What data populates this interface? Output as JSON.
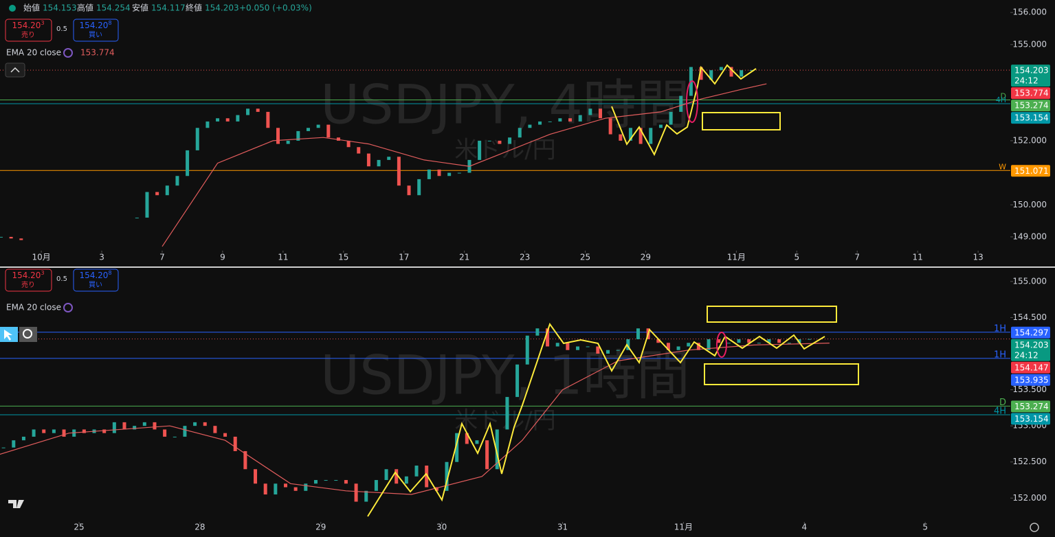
{
  "chart_data": [
    {
      "type": "candlestick",
      "title": "USDJPY, 4時間",
      "subtitle": "米ドル/円",
      "ohlc": {
        "open_label": "始値",
        "open": 154.153,
        "high_label": "高値",
        "high": 154.254,
        "low_label": "安値",
        "low": 154.117,
        "close_label": "終値",
        "close": 154.203,
        "change": "+0.050 (+0.03%)"
      },
      "trade": {
        "sell_price": "154.20",
        "sell_pip": "3",
        "sell_label": "売り",
        "spread": "0.5",
        "buy_price": "154.20",
        "buy_pip": "8",
        "buy_label": "買い"
      },
      "up_color": "#26a69a",
      "down_color": "#ef5350",
      "x": [
        -8,
        -6,
        -4,
        19,
        21,
        23,
        25,
        27,
        29,
        31,
        33,
        35,
        37,
        39,
        41,
        43,
        45,
        47,
        49,
        51,
        53,
        55,
        57,
        59,
        61,
        63,
        65,
        67,
        69,
        71,
        73,
        75,
        77,
        79,
        81,
        83,
        85,
        87,
        89,
        91,
        93,
        95,
        97,
        99,
        101,
        103,
        105,
        107,
        109,
        111,
        113,
        115,
        117,
        119,
        121,
        123,
        125,
        127,
        129,
        131,
        133,
        135,
        137,
        139,
        141
      ],
      "close": [
        149.0,
        148.95,
        148.9,
        149.6,
        150.4,
        150.3,
        150.6,
        150.9,
        151.7,
        152.4,
        152.6,
        152.7,
        152.6,
        152.8,
        153.0,
        152.9,
        152.4,
        151.9,
        152.0,
        152.3,
        152.4,
        152.5,
        152.1,
        152.0,
        151.8,
        151.6,
        151.2,
        151.4,
        151.5,
        150.6,
        150.3,
        150.8,
        151.1,
        150.9,
        151.0,
        151.0,
        151.4,
        152.0,
        152.0,
        151.9,
        152.1,
        152.4,
        152.5,
        152.6,
        152.6,
        152.7,
        152.6,
        152.8,
        153.0,
        152.7,
        152.2,
        152.0,
        152.4,
        151.9,
        152.4,
        152.5,
        152.9,
        153.4,
        154.3,
        153.9,
        154.2,
        154.3,
        154.0,
        154.2,
        154.203
      ],
      "ema": {
        "name": "EMA 20 close",
        "color": "#e35d5d",
        "last": 153.774,
        "legend_shows_value": true,
        "x": [
          24,
          35,
          46,
          56,
          65,
          76,
          85,
          93,
          101,
          112,
          123,
          131,
          139,
          144
        ],
        "values": [
          148.7,
          151.3,
          152.0,
          152.1,
          151.9,
          151.4,
          151.2,
          151.7,
          152.2,
          152.7,
          152.9,
          153.3,
          153.6,
          153.774
        ]
      },
      "last": {
        "value": 154.203,
        "countdown": "24:12",
        "color": "#089981"
      },
      "levels": [
        {
          "label": "D",
          "value": 153.274,
          "color": "#4caf50"
        },
        {
          "label": "4H",
          "value": 153.154,
          "color": "#0097a7"
        },
        {
          "label": "W",
          "value": 151.071,
          "color": "#ff9800"
        }
      ],
      "xlim": [
        -8.2,
        192.4
      ],
      "ylim": [
        148.57,
        156.39
      ],
      "xticks": [
        {
          "value": 0,
          "label": "10月"
        },
        {
          "value": 12,
          "label": "3"
        },
        {
          "value": 24,
          "label": "7"
        },
        {
          "value": 36,
          "label": "9"
        },
        {
          "value": 48,
          "label": "11"
        },
        {
          "value": 60,
          "label": "15"
        },
        {
          "value": 72,
          "label": "17"
        },
        {
          "value": 84,
          "label": "21"
        },
        {
          "value": 96,
          "label": "23"
        },
        {
          "value": 108,
          "label": "25"
        },
        {
          "value": 120,
          "label": "29"
        },
        {
          "value": 138,
          "label": "11月"
        },
        {
          "value": 150,
          "label": "5"
        },
        {
          "value": 162,
          "label": "7"
        },
        {
          "value": 174,
          "label": "11"
        },
        {
          "value": 186,
          "label": "13"
        }
      ],
      "yticks": [
        {
          "value": 156,
          "label": "156.000"
        },
        {
          "value": 155,
          "label": "155.000"
        },
        {
          "value": 152,
          "label": "152.000"
        },
        {
          "value": 150,
          "label": "150.000"
        },
        {
          "value": 149,
          "label": "149.000"
        }
      ]
    },
    {
      "type": "candlestick",
      "title": "USDJPY, 1時間",
      "subtitle": "米ドル/円",
      "trade": {
        "sell_price": "154.20",
        "sell_pip": "3",
        "sell_label": "売り",
        "spread": "0.5",
        "buy_price": "154.20",
        "buy_pip": "8",
        "buy_label": "買い"
      },
      "up_color": "#26a69a",
      "down_color": "#ef5350",
      "x": [
        -15,
        -13,
        -11,
        -9,
        -7,
        -5,
        -3,
        -1,
        1,
        3,
        5,
        7,
        9,
        11,
        13,
        15,
        17,
        19,
        21,
        23,
        25,
        27,
        29,
        31,
        33,
        35,
        37,
        39,
        41,
        43,
        45,
        47,
        49,
        51,
        53,
        55,
        57,
        59,
        61,
        63,
        65,
        67,
        69,
        71,
        73,
        75,
        77,
        79,
        81,
        83,
        85,
        87,
        89,
        91,
        93,
        95,
        97,
        99,
        101,
        103,
        105,
        107,
        109,
        111,
        113,
        115,
        117,
        119,
        121,
        123,
        125,
        127,
        129,
        131,
        133,
        135,
        137,
        139,
        141,
        143,
        145
      ],
      "close": [
        152.7,
        152.8,
        152.85,
        152.95,
        152.9,
        152.95,
        152.85,
        152.95,
        152.9,
        152.95,
        152.9,
        153.05,
        152.95,
        153.0,
        153.05,
        152.95,
        152.85,
        152.85,
        153.0,
        153.05,
        153.0,
        152.9,
        152.85,
        152.65,
        152.4,
        152.2,
        152.05,
        152.2,
        152.15,
        152.1,
        152.2,
        152.25,
        152.25,
        152.25,
        152.2,
        151.95,
        152.1,
        152.25,
        152.4,
        152.2,
        152.3,
        152.45,
        152.15,
        152.1,
        152.5,
        152.9,
        152.75,
        152.8,
        152.4,
        152.95,
        153.4,
        153.85,
        154.25,
        154.35,
        154.1,
        154.15,
        154.05,
        154.1,
        154.1,
        154.0,
        154.05,
        154.05,
        154.2,
        154.35,
        154.2,
        154.15,
        154.05,
        154.1,
        154.15,
        154.05,
        154.2,
        154.15,
        154.15,
        154.2,
        154.15,
        154.15,
        154.2,
        154.15,
        154.15,
        154.2,
        154.203
      ],
      "ema": {
        "name": "EMA 20 close",
        "color": "#e35d5d",
        "last": 154.147,
        "legend_shows_value": false,
        "x": [
          -16,
          -2,
          18,
          29,
          42,
          53,
          66,
          80,
          88,
          96,
          107,
          121,
          134,
          149
        ],
        "values": [
          152.6,
          152.9,
          153.0,
          152.8,
          152.2,
          152.1,
          152.05,
          152.3,
          152.8,
          153.5,
          153.9,
          154.05,
          154.12,
          154.147
        ]
      },
      "last": {
        "value": 154.203,
        "countdown": "24:12",
        "color": "#089981"
      },
      "levels": [
        {
          "label": "1H",
          "value": 154.297,
          "color": "#2962ff"
        },
        {
          "label": "1H",
          "value": 153.935,
          "color": "#2962ff"
        },
        {
          "label": "D",
          "value": 153.274,
          "color": "#4caf50"
        },
        {
          "label": "4H",
          "value": 153.154,
          "color": "#0097a7"
        }
      ],
      "xlim": [
        -15.7,
        184.9
      ],
      "ylim": [
        151.67,
        155.17
      ],
      "xticks": [
        {
          "value": 0,
          "label": "25"
        },
        {
          "value": 24,
          "label": "28"
        },
        {
          "value": 48,
          "label": "29"
        },
        {
          "value": 72,
          "label": "30"
        },
        {
          "value": 96,
          "label": "31"
        },
        {
          "value": 120,
          "label": "11月"
        },
        {
          "value": 144,
          "label": "4"
        },
        {
          "value": 168,
          "label": "5"
        }
      ],
      "yticks": [
        {
          "value": 155,
          "label": "155.000"
        },
        {
          "value": 154.5,
          "label": "154.500"
        },
        {
          "value": 153.5,
          "label": "153.500"
        },
        {
          "value": 153,
          "label": "153.000"
        },
        {
          "value": 152.5,
          "label": "152.500"
        },
        {
          "value": 152,
          "label": "152.000"
        }
      ]
    }
  ]
}
